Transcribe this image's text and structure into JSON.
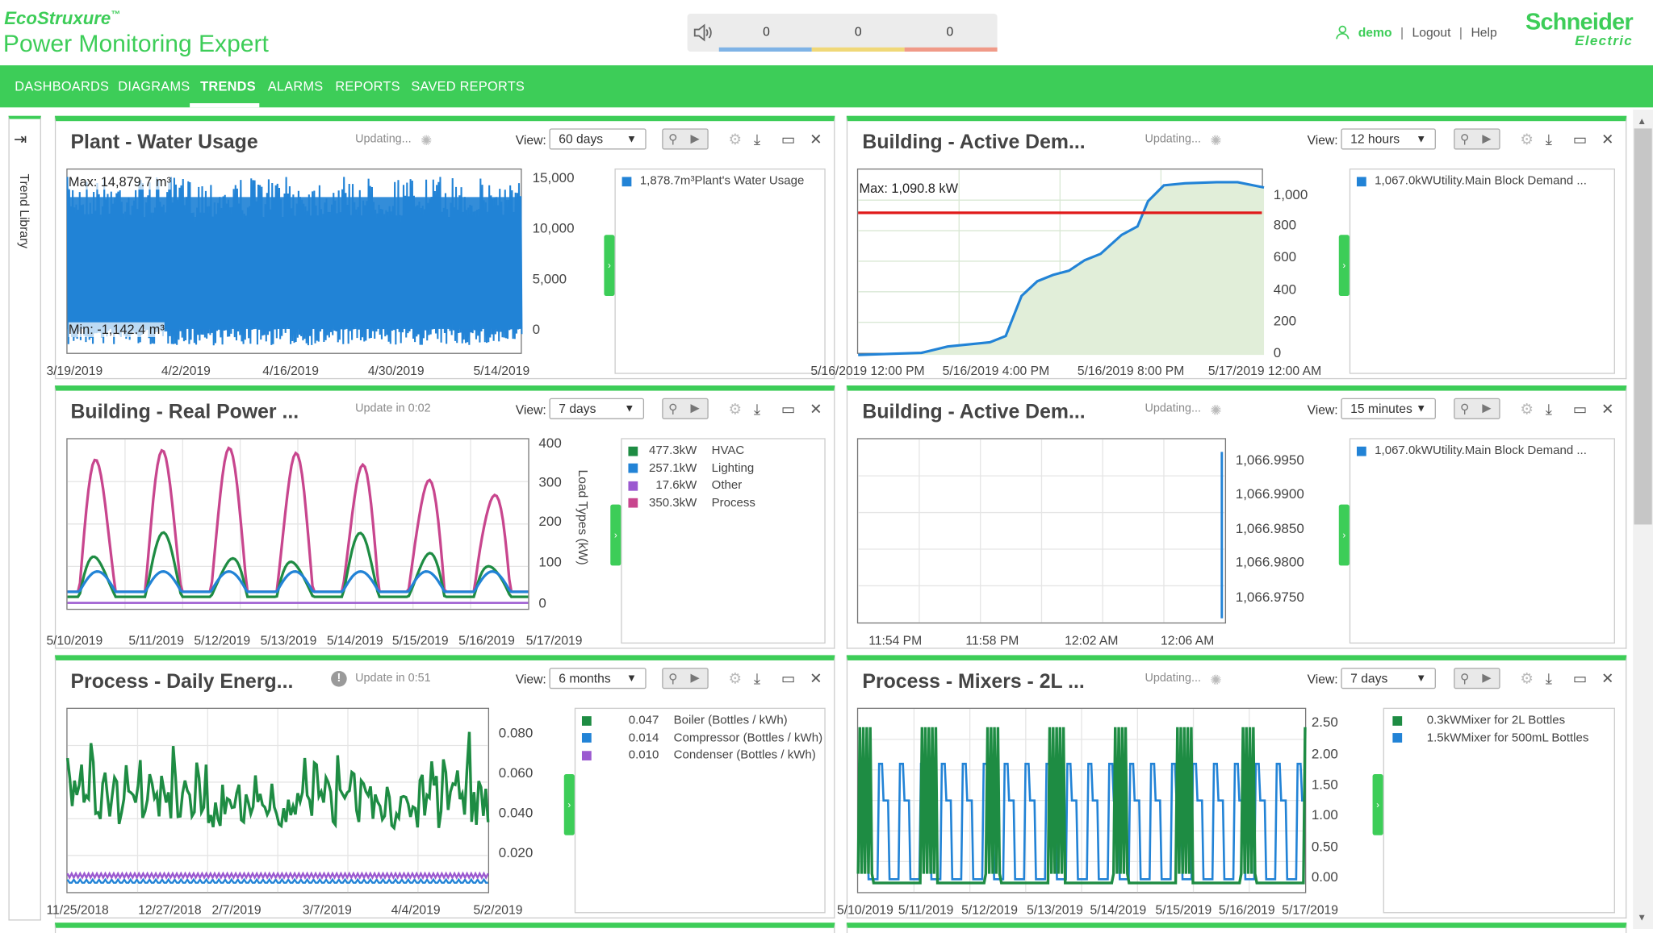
{
  "header": {
    "brand_line1": "EcoStruxure",
    "brand_tm": "™",
    "app_name": "Power Monitoring Expert",
    "alarm_counts": [
      "0",
      "0",
      "0"
    ],
    "user": "demo",
    "logout": "Logout",
    "help": "Help",
    "logo_line1": "Schneider",
    "logo_line2": "Electric"
  },
  "nav": {
    "items": [
      "DASHBOARDS",
      "DIAGRAMS",
      "TRENDS",
      "ALARMS",
      "REPORTS",
      "SAVED REPORTS"
    ],
    "active": "TRENDS"
  },
  "sidebar": {
    "label": "Trend Library"
  },
  "icons": {
    "user": "user-icon",
    "speaker": "speaker-icon",
    "zoom": "magnifier-icon",
    "play": "play-icon",
    "settings": "gear-icon",
    "export": "download-icon",
    "maximize": "maximize-icon",
    "close": "close-icon",
    "spinner": "spinner-icon",
    "toggle": "chevron-right-icon",
    "info": "info-icon",
    "collapse": "collapse-sidebar-icon"
  },
  "colors": {
    "accent": "#3dcd58",
    "alarm_low": "#7fb3e6",
    "alarm_med": "#f0d878",
    "alarm_high": "#f09a88",
    "blue": "#2283d6",
    "green": "#1e8c43",
    "magenta": "#c8468e",
    "purple": "#9b59d0",
    "red": "#e01a1a"
  },
  "common": {
    "view_label": "View:"
  },
  "panels": [
    {
      "title": "Plant - Water Usage",
      "status": "Updating...",
      "view": "60 days",
      "max_label": "Max: 14,879.7 m³",
      "min_label": "Min: -1,142.4 m³",
      "y_ticks": [
        "15,000",
        "10,000",
        "5,000",
        "0"
      ],
      "x_ticks": [
        "3/19/2019",
        "4/2/2019",
        "4/16/2019",
        "4/30/2019",
        "5/14/2019"
      ],
      "legend": [
        {
          "value": "1,878.7m³",
          "name": "Plant's Water Usage",
          "color": "#2283d6"
        }
      ]
    },
    {
      "title": "Building - Active Dem...",
      "status": "Updating...",
      "view": "12 hours",
      "max_label": "Max: 1,090.8 kW",
      "y_ticks": [
        "1,000",
        "800",
        "600",
        "400",
        "200",
        "0"
      ],
      "x_ticks": [
        "5/16/2019 12:00 PM",
        "5/16/2019 4:00 PM",
        "5/16/2019 8:00 PM",
        "5/17/2019 12:00 AM"
      ],
      "legend": [
        {
          "value": "1,067.0kW",
          "name": "Utility.Main Block Demand ...",
          "color": "#2283d6"
        }
      ]
    },
    {
      "title": "Building - Real Power ...",
      "status": "Update in 0:02",
      "view": "7 days",
      "y_title": "Load Types (kW)",
      "y_ticks": [
        "400",
        "300",
        "200",
        "100",
        "0"
      ],
      "x_ticks": [
        "5/10/2019",
        "5/11/2019",
        "5/12/2019",
        "5/13/2019",
        "5/14/2019",
        "5/15/2019",
        "5/16/2019",
        "5/17/2019"
      ],
      "legend": [
        {
          "value": "477.3kW",
          "name": "HVAC",
          "color": "#1e8c43"
        },
        {
          "value": "257.1kW",
          "name": "Lighting",
          "color": "#2283d6"
        },
        {
          "value": "17.6kW",
          "name": "Other",
          "color": "#9b59d0"
        },
        {
          "value": "350.3kW",
          "name": "Process",
          "color": "#c8468e"
        }
      ]
    },
    {
      "title": "Building - Active Dem...",
      "status": "Updating...",
      "view": "15 minutes",
      "y_ticks": [
        "1,066.9950",
        "1,066.9900",
        "1,066.9850",
        "1,066.9800",
        "1,066.9750"
      ],
      "x_ticks": [
        "11:54 PM",
        "11:58 PM",
        "12:02 AM",
        "12:06 AM"
      ],
      "legend": [
        {
          "value": "1,067.0kW",
          "name": "Utility.Main Block Demand ...",
          "color": "#2283d6"
        }
      ]
    },
    {
      "title": "Process - Daily Energ...",
      "status": "Update in 0:51",
      "view": "6 months",
      "y_ticks": [
        "0.080",
        "0.060",
        "0.040",
        "0.020"
      ],
      "x_ticks": [
        "11/25/2018",
        "12/27/2018",
        "2/7/2019",
        "3/7/2019",
        "4/4/2019",
        "5/2/2019"
      ],
      "legend": [
        {
          "value": "0.047",
          "name": "Boiler (Bottles / kWh)",
          "color": "#1e8c43"
        },
        {
          "value": "0.014",
          "name": "Compressor (Bottles / kWh)",
          "color": "#2283d6"
        },
        {
          "value": "0.010",
          "name": "Condenser (Bottles / kWh)",
          "color": "#9b59d0"
        }
      ]
    },
    {
      "title": "Process - Mixers - 2L ...",
      "status": "Updating...",
      "view": "7 days",
      "y_ticks": [
        "2.50",
        "2.00",
        "1.50",
        "1.00",
        "0.50",
        "0.00"
      ],
      "x_ticks": [
        "5/10/2019",
        "5/11/2019",
        "5/12/2019",
        "5/13/2019",
        "5/14/2019",
        "5/15/2019",
        "5/16/2019",
        "5/17/2019"
      ],
      "legend": [
        {
          "value": "0.3kW",
          "name": "Mixer for 2L Bottles",
          "color": "#1e8c43"
        },
        {
          "value": "1.5kW",
          "name": "Mixer for 500mL Bottles",
          "color": "#2283d6"
        }
      ]
    }
  ]
}
